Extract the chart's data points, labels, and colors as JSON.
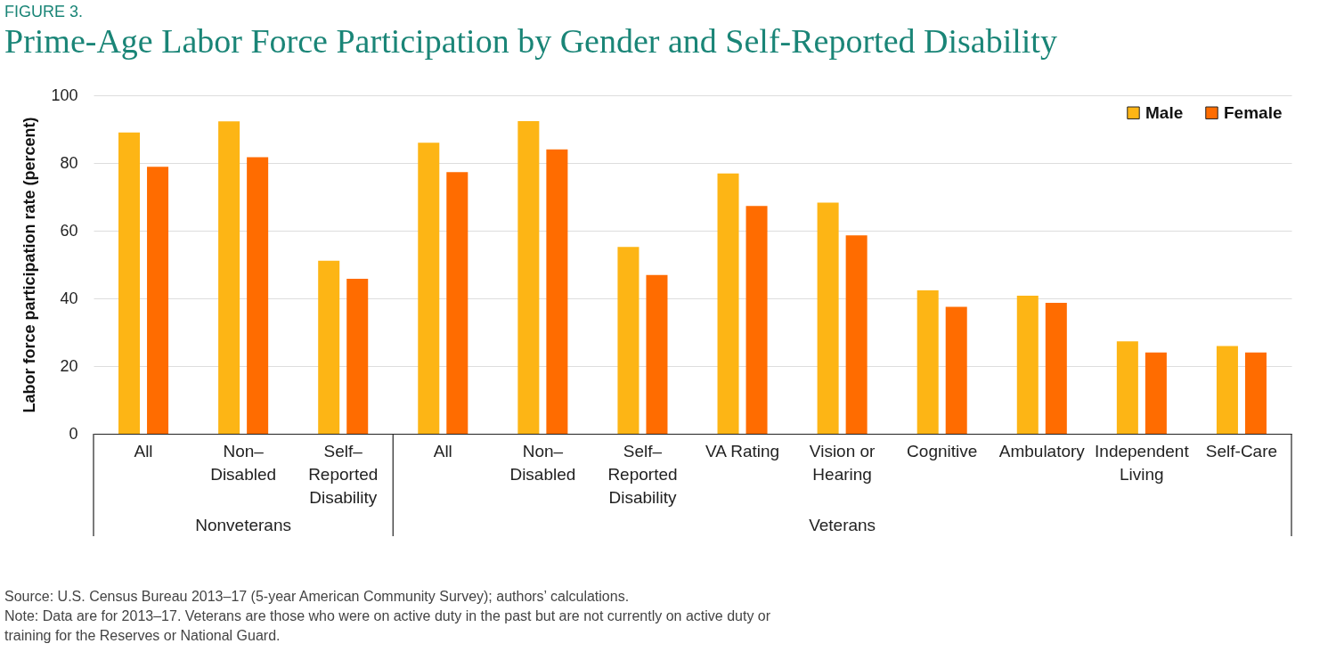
{
  "chart_data": {
    "type": "bar",
    "title": "Prime-Age Labor Force Participation by Gender and Self-Reported Disability",
    "ylabel": "Labor force participation rate (percent)",
    "categories": [
      "All",
      "Non–Disabled",
      "Self–Reported Disability",
      "All",
      "Non–Disabled",
      "Self–Reported Disability",
      "VA Rating",
      "Vision or Hearing",
      "Cognitive",
      "Ambulatory",
      "Independent Living",
      "Self-Care"
    ],
    "series": [
      {
        "name": "Male",
        "color": "#fdb515",
        "values": [
          89.0,
          92.3,
          51.1,
          86.0,
          92.4,
          55.2,
          76.9,
          68.3,
          42.4,
          40.8,
          27.3,
          25.9
        ]
      },
      {
        "name": "Female",
        "color": "#ff6c00",
        "values": [
          78.9,
          81.7,
          45.8,
          77.3,
          84.0,
          46.9,
          67.3,
          58.6,
          37.5,
          38.7,
          24.0,
          24.0
        ]
      }
    ],
    "ylim": [
      0,
      100
    ],
    "yticks": [
      0,
      20,
      40,
      60,
      80,
      100
    ],
    "grid": "y",
    "legend": "top right",
    "annotations": [
      "FIGURE 3.",
      "Nonveterans",
      "Veterans",
      "Source: U.S. Census Bureau 2013–17 (5-year American Community Survey); authors’ calculations.",
      "Note: Data are for 2013–17. Veterans are those who were on active duty in the past but are not currently on active duty or training for the Reserves or National Guard."
    ]
  }
}
